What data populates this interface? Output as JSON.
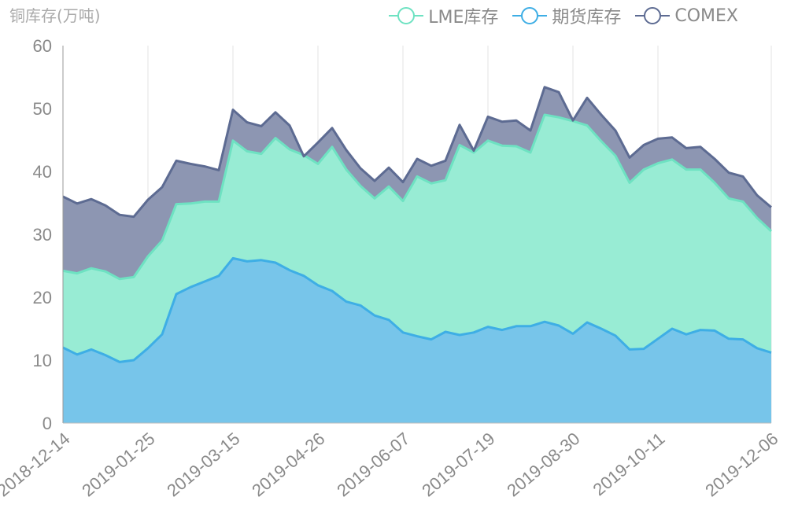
{
  "chart_data": {
    "type": "area",
    "stacked": true,
    "title": "",
    "ylabel": "铜库存(万吨)",
    "xlabel": "",
    "ylim": [
      0,
      60
    ],
    "yticks": [
      0,
      10,
      20,
      30,
      40,
      50,
      60
    ],
    "grid": "vertical",
    "legend": "top-right",
    "xtick_labels": [
      "2018-12-14",
      "2019-01-25",
      "2019-03-15",
      "2019-04-26",
      "2019-06-07",
      "2019-07-19",
      "2019-08-30",
      "2019-10-11",
      "2019-12-06"
    ],
    "xtick_index": [
      0,
      6,
      12,
      18,
      24,
      30,
      36,
      42,
      50
    ],
    "series": [
      {
        "name": "期货库存",
        "color": "#3eaee5",
        "fill": "#77c5ea",
        "values": [
          12.0,
          10.9,
          11.7,
          10.8,
          9.7,
          10.0,
          11.9,
          14.1,
          20.5,
          21.6,
          22.5,
          23.4,
          26.2,
          25.7,
          25.9,
          25.5,
          24.3,
          23.4,
          21.9,
          21.0,
          19.3,
          18.7,
          17.1,
          16.4,
          14.4,
          13.8,
          13.3,
          14.5,
          14.0,
          14.4,
          15.3,
          14.8,
          15.4,
          15.4,
          16.1,
          15.5,
          14.2,
          16.0,
          15.0,
          13.9,
          11.7,
          11.8,
          13.4,
          15.0,
          14.1,
          14.8,
          14.7,
          13.4,
          13.3,
          11.9,
          11.2
        ]
      },
      {
        "name": "LME库存",
        "color": "#6ee2c2",
        "fill": "#98ecd4",
        "values": [
          12.2,
          12.9,
          12.9,
          13.3,
          13.2,
          13.2,
          14.6,
          14.9,
          14.3,
          13.3,
          12.7,
          11.8,
          18.7,
          17.5,
          16.9,
          19.8,
          19.2,
          19.2,
          19.3,
          22.9,
          21.0,
          19.0,
          18.6,
          21.2,
          20.9,
          25.4,
          24.8,
          24.1,
          30.2,
          28.6,
          29.6,
          29.3,
          28.6,
          27.6,
          32.9,
          33.1,
          33.8,
          31.3,
          29.8,
          28.6,
          26.5,
          28.5,
          27.9,
          26.9,
          26.2,
          25.5,
          23.5,
          22.3,
          21.9,
          20.7,
          19.3
        ]
      },
      {
        "name": "COMEX",
        "color": "#5d6b92",
        "fill": "#8d96b2",
        "values": [
          11.8,
          11.1,
          11.0,
          10.5,
          10.2,
          9.6,
          9.0,
          8.5,
          6.9,
          6.3,
          5.6,
          5.0,
          4.9,
          4.6,
          4.4,
          4.1,
          3.8,
          -0.2,
          3.4,
          3.0,
          3.1,
          2.8,
          2.8,
          3.0,
          3.0,
          2.8,
          2.8,
          3.1,
          3.2,
          0.3,
          3.8,
          3.8,
          4.1,
          3.5,
          4.4,
          4.0,
          0.1,
          4.4,
          4.2,
          4.0,
          4.0,
          3.9,
          3.9,
          3.5,
          3.4,
          3.6,
          3.8,
          4.1,
          4.0,
          3.6,
          3.8
        ]
      }
    ]
  }
}
